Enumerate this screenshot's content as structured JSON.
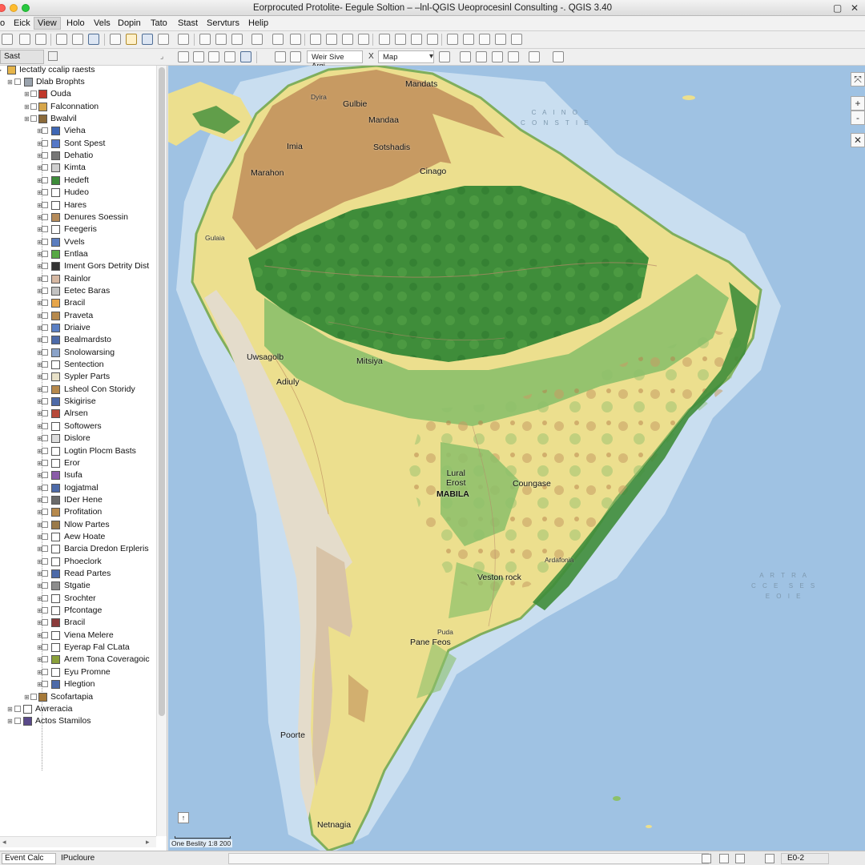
{
  "window": {
    "title": "Eorprocuted Protolite- Eegule  Soltion – –lnl-QGIS Ueoprocesinl Consulting -. QGIS 3.40"
  },
  "menubar": {
    "items": [
      {
        "id": "menu-o",
        "label": "o"
      },
      {
        "id": "menu-eick",
        "label": "Eick"
      },
      {
        "id": "menu-view",
        "label": "View"
      },
      {
        "id": "menu-holo",
        "label": "Holo"
      },
      {
        "id": "menu-vels",
        "label": "Vels"
      },
      {
        "id": "menu-dopin",
        "label": "Dopin"
      },
      {
        "id": "menu-tato",
        "label": "Tato"
      },
      {
        "id": "menu-stast",
        "label": "Stast"
      },
      {
        "id": "menu-servturs",
        "label": "Servturs"
      },
      {
        "id": "menu-help",
        "label": "Helip"
      }
    ]
  },
  "toolbar2": {
    "layers_tab_label": "Sast",
    "scale_value": "Weir Sive Argi",
    "x_label": "X",
    "map_value": "Map"
  },
  "layers": {
    "root_label": "Iectatly ccalip raests",
    "items": [
      {
        "label": "Dlab Brophts",
        "color": "#9aa3ad"
      },
      {
        "label": "Ouda",
        "color": "#c0392b"
      },
      {
        "label": "Falconnation",
        "color": "#d7a64a"
      },
      {
        "label": "Bwalvil",
        "color": "#8b6a3a"
      },
      {
        "label": "Vieha",
        "color": "#3f67b5"
      },
      {
        "label": "Sont Spest",
        "color": "#5578c8"
      },
      {
        "label": "Dehatio",
        "color": "#777777"
      },
      {
        "label": "Kimta",
        "color": "#cfcfcf"
      },
      {
        "label": "Hedeft",
        "color": "#3e8c3a"
      },
      {
        "label": "Hudeo",
        "color": "#ffffff"
      },
      {
        "label": "Hares",
        "color": "#ffffff"
      },
      {
        "label": "Denures Soessin",
        "color": "#b58b5a"
      },
      {
        "label": "Feegeris",
        "color": "#ffffff"
      },
      {
        "label": "Vvels",
        "color": "#5b7dbf"
      },
      {
        "label": "Entlaa",
        "color": "#58a845"
      },
      {
        "label": "Iment Gors Detrity Dist",
        "color": "#333333"
      },
      {
        "label": "Rainlor",
        "color": "#d6b8a2"
      },
      {
        "label": "Eetec Baras",
        "color": "#c2c2c2"
      },
      {
        "label": "Bracil",
        "color": "#e6a54a"
      },
      {
        "label": "Praveta",
        "color": "#b6894c"
      },
      {
        "label": "Driaive",
        "color": "#5a7fc4"
      },
      {
        "label": "Bealmardsto",
        "color": "#4d6aa8"
      },
      {
        "label": "Snolowarsing",
        "color": "#8ba3c9"
      },
      {
        "label": "Sentection",
        "color": "#ffffff"
      },
      {
        "label": "Sypler Parts",
        "color": "#e8e1c8"
      },
      {
        "label": "Lsheol Con Storidy",
        "color": "#b6894c"
      },
      {
        "label": "Skigirise",
        "color": "#4d6aa8"
      },
      {
        "label": "Alrsen",
        "color": "#b74a3a"
      },
      {
        "label": "Softowers",
        "color": "#ffffff"
      },
      {
        "label": "Dislore",
        "color": "#dddddd"
      },
      {
        "label": "Logtin Plocm Basts",
        "color": "#ffffff"
      },
      {
        "label": "Eror",
        "color": "#ffffff"
      },
      {
        "label": "Isufa",
        "color": "#8a5ca8"
      },
      {
        "label": "Iogjatmal",
        "color": "#4d6aa8"
      },
      {
        "label": "IDer Hene",
        "color": "#6a6a6a"
      },
      {
        "label": "Profitation",
        "color": "#b6894c"
      },
      {
        "label": "Nlow Partes",
        "color": "#9a7a4a"
      },
      {
        "label": "Aew Hoate",
        "color": "#ffffff"
      },
      {
        "label": "Barcia Dredon Erpleris",
        "color": "#ffffff"
      },
      {
        "label": "Phoeclork",
        "color": "#ffffff"
      },
      {
        "label": "Read Partes",
        "color": "#4d6aa8"
      },
      {
        "label": "Stgatie",
        "color": "#8d8d8d"
      },
      {
        "label": "Srochter",
        "color": "#ffffff"
      },
      {
        "label": "Pfcontage",
        "color": "#ffffff"
      },
      {
        "label": "Bracil",
        "color": "#8a3a3a"
      },
      {
        "label": "Viena Melere",
        "color": "#ffffff"
      },
      {
        "label": "Eyerap Fal CLata",
        "color": "#ffffff"
      },
      {
        "label": "Arem Tona Coveragoic",
        "color": "#8aa03a"
      },
      {
        "label": "Eyu Promne",
        "color": "#ffffff"
      },
      {
        "label": "Hlegtion",
        "color": "#4d6aa8"
      },
      {
        "label": "Scofartapia",
        "color": "#a67a3a"
      },
      {
        "label": "Awreracia",
        "color": "#ffffff"
      },
      {
        "label": "Actos Stamilos",
        "color": "#5a4a8a"
      }
    ]
  },
  "map": {
    "labels": [
      {
        "id": "mandats",
        "text": "Mandats",
        "small": false
      },
      {
        "id": "dyira",
        "text": "Dyira",
        "small": true
      },
      {
        "id": "gulbie",
        "text": "Gulbie",
        "small": false
      },
      {
        "id": "mandaa",
        "text": "Mandaa",
        "small": false
      },
      {
        "id": "imia",
        "text": "Imia",
        "small": false
      },
      {
        "id": "sotshadis",
        "text": "Sotshadis",
        "small": false
      },
      {
        "id": "marahon",
        "text": "Marahon",
        "small": false
      },
      {
        "id": "cinago",
        "text": "Cinago",
        "small": false
      },
      {
        "id": "gulaia",
        "text": "Gulaia",
        "small": true
      },
      {
        "id": "uwsagolb",
        "text": "Uwsagolb",
        "small": false
      },
      {
        "id": "mitsiya",
        "text": "Mitsiya",
        "small": false
      },
      {
        "id": "adiuly",
        "text": "Adiuly",
        "small": false
      },
      {
        "id": "lural-erost",
        "text": "Lural\nErost",
        "small": false
      },
      {
        "id": "mabila",
        "text": "MABILA",
        "small": false
      },
      {
        "id": "coungase",
        "text": "Coungase",
        "small": false
      },
      {
        "id": "ardafonia",
        "text": "Ardafonia",
        "small": true
      },
      {
        "id": "veston-rock",
        "text": "Veston rock",
        "small": false
      },
      {
        "id": "puda",
        "text": "Puda",
        "small": true
      },
      {
        "id": "paneleos",
        "text": "Pane Feos",
        "small": false
      },
      {
        "id": "poorte",
        "text": "Poorte",
        "small": false
      },
      {
        "id": "netnagia",
        "text": "Netnagia",
        "small": false
      }
    ],
    "ocean_labels": [
      {
        "id": "ocean-caribe",
        "text": "C A I N O\nC O N S T I E"
      },
      {
        "id": "ocean-atlantic",
        "text": "A R T R A\nC C E  S E S\nE O I E"
      }
    ],
    "scale_label": "One Beslity 1:8 200"
  },
  "statusbar": {
    "locator": "Event Calc",
    "message": "IPucloure",
    "crs": "E0-2"
  },
  "colors": {
    "ocean": "#9fc2e3",
    "shelf": "#c9def0",
    "forest": "#3f8d3a",
    "green_light": "#8cc06a",
    "savanna": "#ecdf8e",
    "upland": "#c79a62",
    "mountain": "#e4dccb"
  }
}
